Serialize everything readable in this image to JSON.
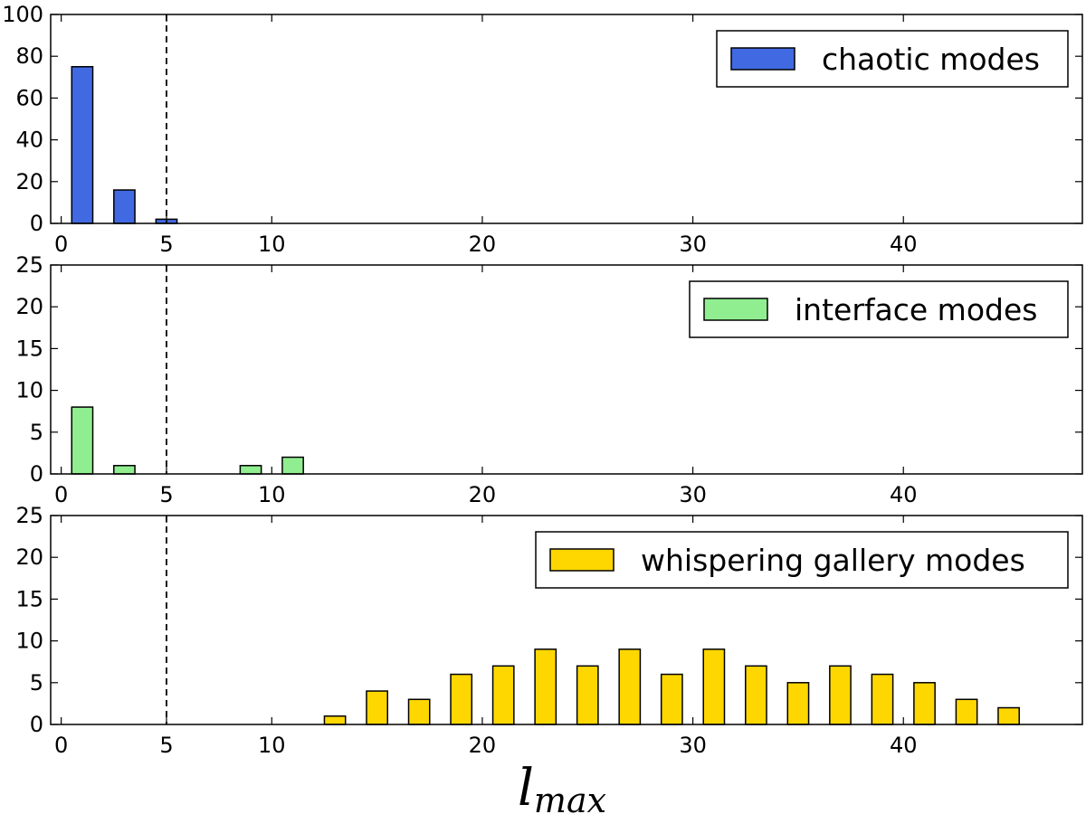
{
  "chart_data": [
    {
      "type": "bar",
      "x": [
        1,
        3,
        5
      ],
      "values": [
        75,
        16,
        2
      ],
      "series_name": "chaotic modes",
      "color": "#4169e1",
      "xlim": [
        -0.5,
        48.5
      ],
      "ylim": [
        0,
        100
      ],
      "xticks": [
        0,
        5,
        10,
        20,
        30,
        40
      ],
      "yticks": [
        0,
        20,
        40,
        60,
        80,
        100
      ],
      "vline_x": 5,
      "legend_position": "top-right"
    },
    {
      "type": "bar",
      "x": [
        1,
        3,
        9,
        11
      ],
      "values": [
        8,
        1,
        1,
        2
      ],
      "series_name": "interface modes",
      "color": "#90ee90",
      "xlim": [
        -0.5,
        48.5
      ],
      "ylim": [
        0,
        25
      ],
      "xticks": [
        0,
        5,
        10,
        20,
        30,
        40
      ],
      "yticks": [
        0,
        5,
        10,
        15,
        20,
        25
      ],
      "vline_x": 5,
      "legend_position": "top-right"
    },
    {
      "type": "bar",
      "x": [
        13,
        15,
        17,
        19,
        21,
        23,
        25,
        27,
        29,
        31,
        33,
        35,
        37,
        39,
        41,
        43,
        45
      ],
      "values": [
        1,
        4,
        3,
        6,
        7,
        9,
        7,
        9,
        6,
        9,
        7,
        5,
        7,
        6,
        5,
        3,
        2
      ],
      "series_name": "whispering gallery modes",
      "color": "#ffd700",
      "xlim": [
        -0.5,
        48.5
      ],
      "ylim": [
        0,
        25
      ],
      "xticks": [
        0,
        5,
        10,
        20,
        30,
        40
      ],
      "yticks": [
        0,
        5,
        10,
        15,
        20,
        25
      ],
      "vline_x": 5,
      "legend_position": "top-right"
    }
  ],
  "xlabel_main": "l",
  "xlabel_sub": "max"
}
